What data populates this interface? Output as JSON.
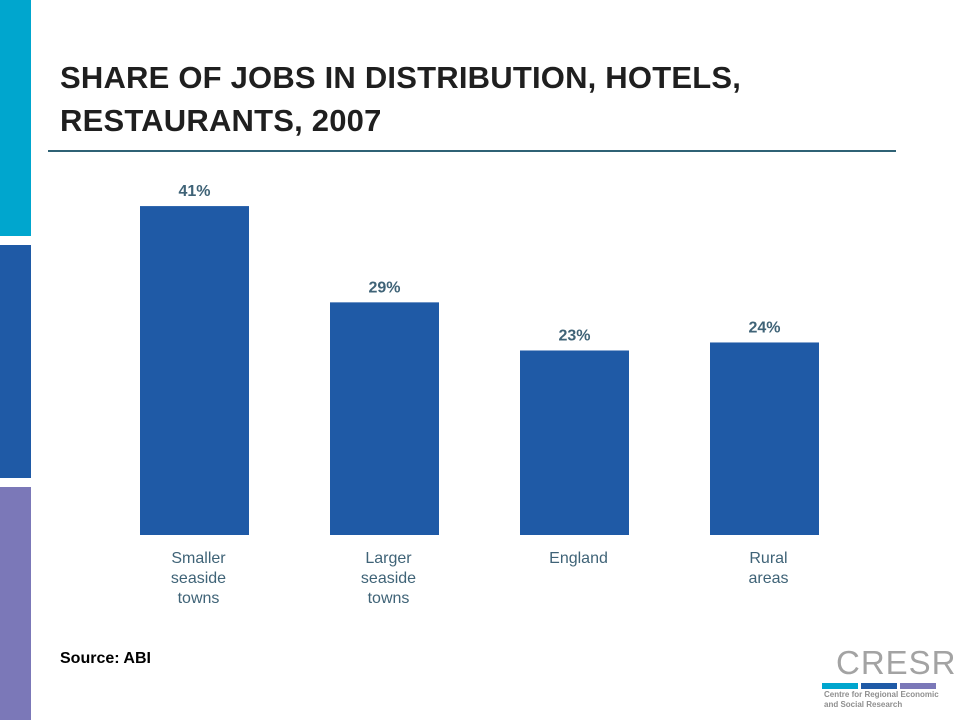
{
  "theme": {
    "strip_colors": [
      "#00a6ce",
      "#1f5aa6",
      "#7b78b8"
    ],
    "bar_color": "#1f5aa6",
    "label_color": "#3f6377",
    "rule_color": "#2f6275"
  },
  "slide": {
    "title_line1": "SHARE OF JOBS IN DISTRIBUTION, HOTELS,",
    "title_line2": "RESTAURANTS, 2007",
    "source": "Source: ABI"
  },
  "logo": {
    "name": "CRESR",
    "subtitle_line1": "Centre for Regional Economic",
    "subtitle_line2": "and Social Research",
    "bar_colors": [
      "#00a6ce",
      "#1f5aa6",
      "#7b78b8"
    ]
  },
  "chart_data": {
    "type": "bar",
    "categories": [
      "Smaller seaside towns",
      "Larger seaside towns",
      "England",
      "Rural areas"
    ],
    "category_lines": [
      [
        "Smaller",
        "seaside",
        "towns"
      ],
      [
        "Larger",
        "seaside",
        "towns"
      ],
      [
        "England"
      ],
      [
        "Rural",
        "areas"
      ]
    ],
    "values": [
      41,
      29,
      23,
      24
    ],
    "value_labels": [
      "41%",
      "29%",
      "23%",
      "24%"
    ],
    "title": "SHARE OF JOBS IN DISTRIBUTION, HOTELS, RESTAURANTS, 2007",
    "xlabel": "",
    "ylabel": "",
    "ylim": [
      0,
      45
    ],
    "grid": false,
    "legend": "none"
  }
}
